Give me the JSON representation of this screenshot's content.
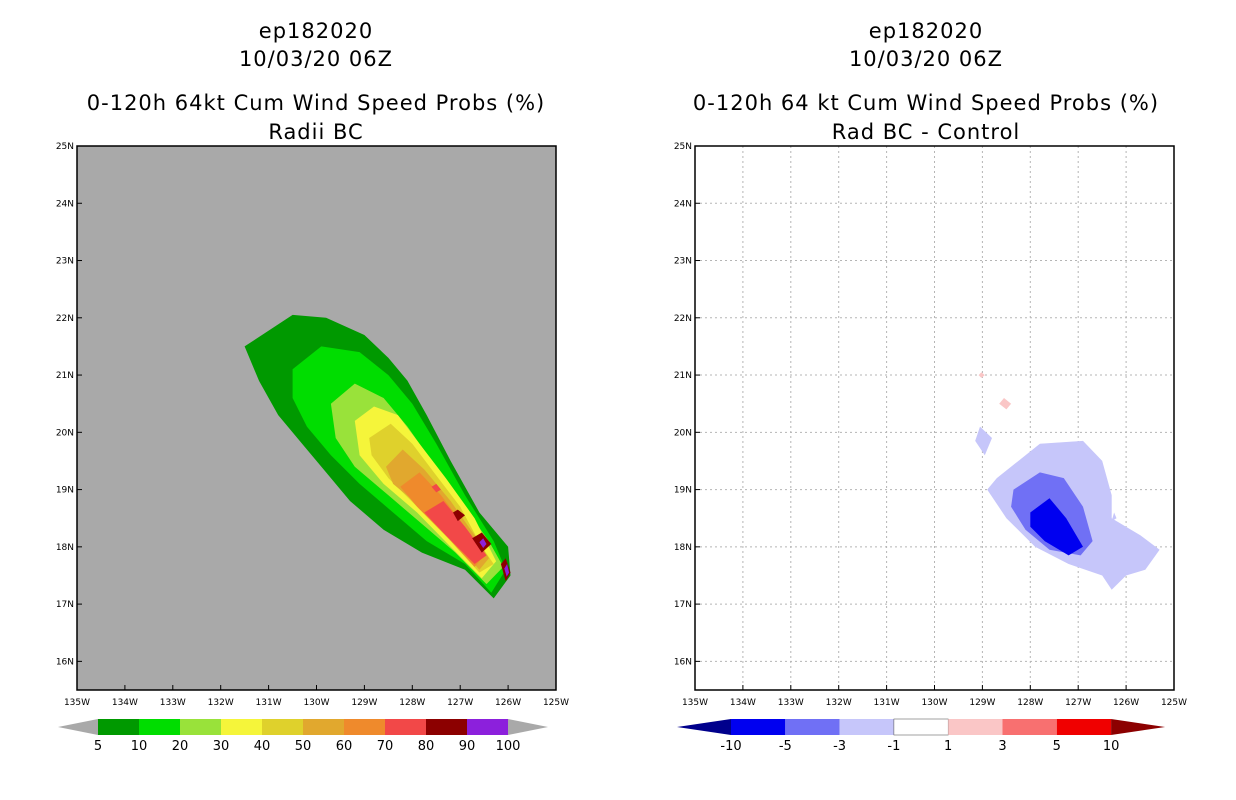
{
  "left_panel": {
    "storm_id": "ep182020",
    "datetime": "10/03/20 06Z",
    "title": "0-120h 64kt Cum Wind Speed Probs (%)",
    "subtitle": "Radii BC"
  },
  "right_panel": {
    "storm_id": "ep182020",
    "datetime": "10/03/20 06Z",
    "title": "0-120h 64 kt Cum Wind Speed Probs (%)",
    "subtitle": "Rad BC - Control"
  },
  "colors": {
    "land_gray": "#a9a9a9",
    "prob_scale": [
      "#009900",
      "#00dd00",
      "#99e23a",
      "#f5f53a",
      "#dfd12c",
      "#e1a82e",
      "#ef8a2c",
      "#f24848",
      "#8c0000",
      "#8c20dc"
    ],
    "diff_scale": [
      "#0000f0",
      "#7070f5",
      "#c6c6fa",
      "#ffffff",
      "#fac6c6",
      "#f87070",
      "#f00000"
    ],
    "diff_end_neg": "#00008c",
    "diff_end_pos": "#8c0000"
  },
  "chart_data": [
    {
      "type": "contour-map",
      "title": "0-120h 64kt Cum Wind Speed Probs (%)",
      "subtitle": "Radii BC",
      "x_tick_labels": [
        "135W",
        "134W",
        "133W",
        "132W",
        "131W",
        "130W",
        "129W",
        "128W",
        "127W",
        "126W",
        "125W"
      ],
      "y_tick_labels": [
        "16N",
        "17N",
        "18N",
        "19N",
        "20N",
        "21N",
        "22N",
        "23N",
        "24N",
        "25N"
      ],
      "xlim_deg_west": [
        135,
        125
      ],
      "ylim_deg_north": [
        15.5,
        25
      ],
      "grid": false,
      "colorbar_levels": [
        "5",
        "10",
        "20",
        "30",
        "40",
        "50",
        "60",
        "70",
        "80",
        "90",
        "100"
      ],
      "contours": [
        {
          "level": 5,
          "lonlat": [
            [
              -131.5,
              21.5
            ],
            [
              -130.5,
              22.05
            ],
            [
              -129.8,
              22.0
            ],
            [
              -129.0,
              21.7
            ],
            [
              -128.5,
              21.3
            ],
            [
              -128.1,
              20.9
            ],
            [
              -127.7,
              20.3
            ],
            [
              -127.2,
              19.5
            ],
            [
              -126.6,
              18.6
            ],
            [
              -126.0,
              18.0
            ],
            [
              -125.95,
              17.5
            ],
            [
              -126.3,
              17.1
            ],
            [
              -126.9,
              17.6
            ],
            [
              -127.8,
              17.9
            ],
            [
              -128.6,
              18.3
            ],
            [
              -129.3,
              18.8
            ],
            [
              -129.8,
              19.3
            ],
            [
              -130.3,
              19.8
            ],
            [
              -130.8,
              20.3
            ],
            [
              -131.2,
              20.9
            ]
          ]
        },
        {
          "level": 10,
          "lonlat": [
            [
              -130.5,
              21.1
            ],
            [
              -129.9,
              21.5
            ],
            [
              -129.1,
              21.4
            ],
            [
              -128.5,
              21.0
            ],
            [
              -128.0,
              20.5
            ],
            [
              -127.5,
              19.8
            ],
            [
              -126.9,
              18.9
            ],
            [
              -126.3,
              18.1
            ],
            [
              -126.05,
              17.6
            ],
            [
              -126.35,
              17.2
            ],
            [
              -126.9,
              17.7
            ],
            [
              -127.7,
              18.1
            ],
            [
              -128.4,
              18.6
            ],
            [
              -129.1,
              19.1
            ],
            [
              -129.7,
              19.6
            ],
            [
              -130.2,
              20.1
            ],
            [
              -130.5,
              20.6
            ]
          ]
        },
        {
          "level": 20,
          "lonlat": [
            [
              -129.7,
              20.5
            ],
            [
              -129.2,
              20.85
            ],
            [
              -128.6,
              20.6
            ],
            [
              -128.1,
              20.1
            ],
            [
              -127.6,
              19.5
            ],
            [
              -127.0,
              18.8
            ],
            [
              -126.4,
              18.1
            ],
            [
              -126.1,
              17.65
            ],
            [
              -126.45,
              17.35
            ],
            [
              -127.1,
              17.9
            ],
            [
              -127.8,
              18.4
            ],
            [
              -128.5,
              18.9
            ],
            [
              -129.2,
              19.4
            ],
            [
              -129.6,
              19.9
            ]
          ]
        },
        {
          "level": 30,
          "lonlat": [
            [
              -129.2,
              20.2
            ],
            [
              -128.8,
              20.45
            ],
            [
              -128.3,
              20.3
            ],
            [
              -127.85,
              19.8
            ],
            [
              -127.3,
              19.2
            ],
            [
              -126.7,
              18.5
            ],
            [
              -126.25,
              17.75
            ],
            [
              -126.55,
              17.45
            ],
            [
              -127.2,
              18.0
            ],
            [
              -127.9,
              18.6
            ],
            [
              -128.6,
              19.1
            ],
            [
              -129.1,
              19.6
            ]
          ]
        },
        {
          "level": 40,
          "lonlat": [
            [
              -128.9,
              19.9
            ],
            [
              -128.45,
              20.15
            ],
            [
              -128.0,
              19.8
            ],
            [
              -127.55,
              19.3
            ],
            [
              -127.0,
              18.7
            ],
            [
              -126.55,
              18.0
            ],
            [
              -126.3,
              17.7
            ],
            [
              -126.6,
              17.55
            ],
            [
              -127.2,
              18.1
            ],
            [
              -127.9,
              18.7
            ],
            [
              -128.5,
              19.2
            ],
            [
              -128.85,
              19.6
            ]
          ]
        },
        {
          "level": 50,
          "lonlat": [
            [
              -128.55,
              19.4
            ],
            [
              -128.2,
              19.7
            ],
            [
              -127.75,
              19.35
            ],
            [
              -127.2,
              18.8
            ],
            [
              -126.7,
              18.2
            ],
            [
              -126.4,
              17.8
            ],
            [
              -126.6,
              17.6
            ],
            [
              -127.2,
              18.15
            ],
            [
              -127.9,
              18.75
            ],
            [
              -128.4,
              19.1
            ]
          ]
        },
        {
          "level": 60,
          "lonlat": [
            [
              -128.25,
              19.05
            ],
            [
              -127.85,
              19.3
            ],
            [
              -127.4,
              18.9
            ],
            [
              -126.9,
              18.35
            ],
            [
              -126.5,
              17.85
            ],
            [
              -126.7,
              17.65
            ],
            [
              -127.3,
              18.2
            ],
            [
              -127.9,
              18.7
            ]
          ]
        },
        {
          "level": 70,
          "lonlat": [
            [
              -127.75,
              18.6
            ],
            [
              -127.35,
              18.8
            ],
            [
              -126.9,
              18.35
            ],
            [
              -126.45,
              17.85
            ],
            [
              -126.7,
              17.7
            ],
            [
              -127.3,
              18.2
            ]
          ]
        },
        {
          "level": 70,
          "lonlat": [
            [
              -127.6,
              19.05
            ],
            [
              -127.5,
              19.1
            ],
            [
              -127.4,
              19.0
            ],
            [
              -127.5,
              18.95
            ]
          ]
        },
        {
          "level": 80,
          "lonlat": [
            [
              -127.15,
              18.6
            ],
            [
              -127.05,
              18.65
            ],
            [
              -126.9,
              18.55
            ],
            [
              -127.05,
              18.45
            ]
          ]
        },
        {
          "level": 80,
          "lonlat": [
            [
              -126.75,
              18.15
            ],
            [
              -126.55,
              18.25
            ],
            [
              -126.35,
              18.05
            ],
            [
              -126.55,
              17.9
            ]
          ]
        },
        {
          "level": 80,
          "lonlat": [
            [
              -126.15,
              17.7
            ],
            [
              -126.05,
              17.8
            ],
            [
              -125.95,
              17.55
            ],
            [
              -126.05,
              17.4
            ]
          ]
        },
        {
          "level": 90,
          "lonlat": [
            [
              -126.6,
              18.08
            ],
            [
              -126.52,
              18.15
            ],
            [
              -126.45,
              18.05
            ],
            [
              -126.52,
              17.98
            ]
          ]
        },
        {
          "level": 90,
          "lonlat": [
            [
              -126.08,
              17.62
            ],
            [
              -126.02,
              17.7
            ],
            [
              -125.98,
              17.55
            ],
            [
              -126.03,
              17.48
            ]
          ]
        }
      ]
    },
    {
      "type": "contour-map",
      "title": "0-120h 64 kt Cum Wind Speed Probs (%)",
      "subtitle": "Rad BC - Control",
      "x_tick_labels": [
        "135W",
        "134W",
        "133W",
        "132W",
        "131W",
        "130W",
        "129W",
        "128W",
        "127W",
        "126W",
        "125W"
      ],
      "y_tick_labels": [
        "16N",
        "17N",
        "18N",
        "19N",
        "20N",
        "21N",
        "22N",
        "23N",
        "24N",
        "25N"
      ],
      "xlim_deg_west": [
        135,
        125
      ],
      "ylim_deg_north": [
        15.5,
        25
      ],
      "grid": true,
      "colorbar_levels": [
        "-10",
        "-5",
        "-3",
        "-1",
        "1",
        "3",
        "5",
        "10"
      ],
      "contours": [
        {
          "level": -1,
          "lonlat": [
            [
              -128.7,
              19.2
            ],
            [
              -127.8,
              19.8
            ],
            [
              -126.9,
              19.85
            ],
            [
              -126.5,
              19.5
            ],
            [
              -126.3,
              18.9
            ],
            [
              -126.3,
              18.5
            ],
            [
              -125.7,
              18.2
            ],
            [
              -125.3,
              17.95
            ],
            [
              -125.6,
              17.6
            ],
            [
              -126.0,
              17.5
            ],
            [
              -126.3,
              17.25
            ],
            [
              -126.5,
              17.5
            ],
            [
              -127.2,
              17.7
            ],
            [
              -127.9,
              18.0
            ],
            [
              -128.5,
              18.5
            ],
            [
              -128.9,
              19.0
            ]
          ]
        },
        {
          "level": -3,
          "lonlat": [
            [
              -128.35,
              19.0
            ],
            [
              -127.8,
              19.3
            ],
            [
              -127.3,
              19.2
            ],
            [
              -126.9,
              18.7
            ],
            [
              -126.7,
              18.1
            ],
            [
              -126.95,
              17.85
            ],
            [
              -127.6,
              17.95
            ],
            [
              -128.1,
              18.3
            ],
            [
              -128.4,
              18.7
            ]
          ]
        },
        {
          "level": -5,
          "lonlat": [
            [
              -128.0,
              18.6
            ],
            [
              -127.6,
              18.85
            ],
            [
              -127.25,
              18.5
            ],
            [
              -126.9,
              18.0
            ],
            [
              -127.2,
              17.85
            ],
            [
              -127.7,
              18.1
            ],
            [
              -128.0,
              18.35
            ]
          ]
        },
        {
          "level": -1,
          "lonlat": [
            [
              -126.25,
              18.6
            ],
            [
              -126.2,
              18.5
            ],
            [
              -126.3,
              18.45
            ]
          ]
        },
        {
          "level": -1,
          "lonlat": [
            [
              -129.05,
              20.1
            ],
            [
              -128.8,
              19.9
            ],
            [
              -128.95,
              19.6
            ],
            [
              -129.15,
              19.85
            ]
          ]
        },
        {
          "level": 1,
          "lonlat": [
            [
              -128.55,
              20.6
            ],
            [
              -128.4,
              20.5
            ],
            [
              -128.5,
              20.4
            ],
            [
              -128.65,
              20.5
            ]
          ]
        },
        {
          "level": 1,
          "lonlat": [
            [
              -129.02,
              21.05
            ],
            [
              -128.95,
              21.0
            ],
            [
              -129.02,
              20.95
            ],
            [
              -129.08,
              21.0
            ]
          ]
        }
      ]
    }
  ]
}
